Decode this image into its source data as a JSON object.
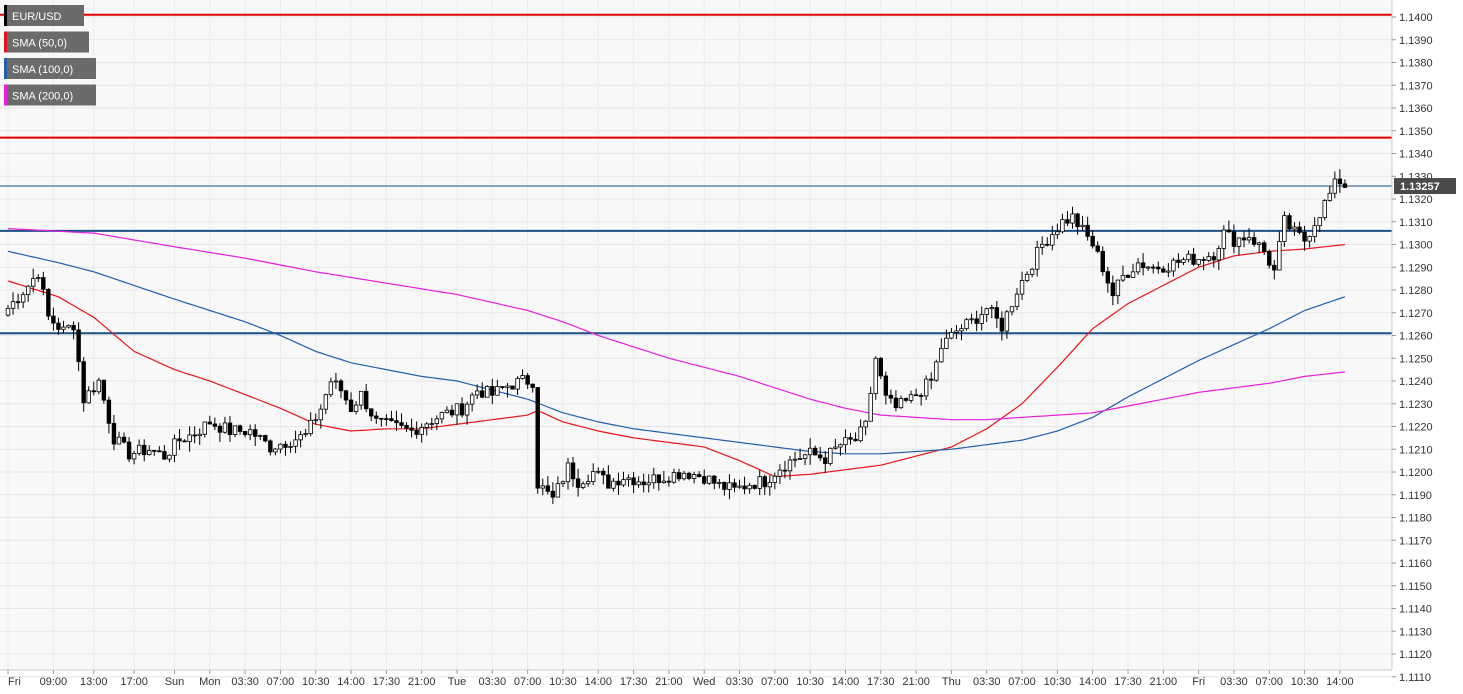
{
  "chart_data": {
    "type": "candlestick",
    "title": "",
    "xlabel": "",
    "ylabel": "",
    "ylim": [
      1.1105,
      1.1405
    ],
    "grid": true,
    "legend_placement": "top-left",
    "y_ticks": [
      "1.1110",
      "1.1120",
      "1.1130",
      "1.1140",
      "1.1150",
      "1.1160",
      "1.1170",
      "1.1180",
      "1.1190",
      "1.1200",
      "1.1210",
      "1.1220",
      "1.1230",
      "1.1240",
      "1.1250",
      "1.1260",
      "1.1270",
      "1.1280",
      "1.1290",
      "1.1300",
      "1.1310",
      "1.1320",
      "1.1330",
      "1.1340",
      "1.1350",
      "1.1360",
      "1.1370",
      "1.1380",
      "1.1390",
      "1.1400"
    ],
    "x_ticks": [
      {
        "label": "Fri",
        "index": 0
      },
      {
        "label": "09:00",
        "index": 9
      },
      {
        "label": "13:00",
        "index": 17
      },
      {
        "label": "17:00",
        "index": 25
      },
      {
        "label": "Sun",
        "index": 33
      },
      {
        "label": "Mon",
        "index": 40
      },
      {
        "label": "03:30",
        "index": 47
      },
      {
        "label": "07:00",
        "index": 54
      },
      {
        "label": "10:30",
        "index": 61
      },
      {
        "label": "14:00",
        "index": 68
      },
      {
        "label": "17:30",
        "index": 75
      },
      {
        "label": "21:00",
        "index": 82
      },
      {
        "label": "Tue",
        "index": 89
      },
      {
        "label": "03:30",
        "index": 96
      },
      {
        "label": "07:00",
        "index": 103
      },
      {
        "label": "10:30",
        "index": 110
      },
      {
        "label": "14:00",
        "index": 117
      },
      {
        "label": "17:30",
        "index": 124
      },
      {
        "label": "21:00",
        "index": 131
      },
      {
        "label": "Wed",
        "index": 138
      },
      {
        "label": "03:30",
        "index": 145
      },
      {
        "label": "07:00",
        "index": 152
      },
      {
        "label": "10:30",
        "index": 159
      },
      {
        "label": "14:00",
        "index": 166
      },
      {
        "label": "17:30",
        "index": 173
      },
      {
        "label": "21:00",
        "index": 180
      },
      {
        "label": "Thu",
        "index": 187
      },
      {
        "label": "03:30",
        "index": 194
      },
      {
        "label": "07:00",
        "index": 201
      },
      {
        "label": "10:30",
        "index": 208
      },
      {
        "label": "14:00",
        "index": 215
      },
      {
        "label": "17:30",
        "index": 222
      },
      {
        "label": "21:00",
        "index": 229
      },
      {
        "label": "Fri",
        "index": 236
      },
      {
        "label": "03:30",
        "index": 243
      },
      {
        "label": "07:00",
        "index": 250
      },
      {
        "label": "10:30",
        "index": 257
      },
      {
        "label": "14:00",
        "index": 264
      }
    ],
    "series": [
      {
        "name": "EUR/USD",
        "type": "candlestick",
        "color": "#000000"
      },
      {
        "name": "SMA (50,0)",
        "type": "line",
        "color": "#e8141b"
      },
      {
        "name": "SMA (100,0)",
        "type": "line",
        "color": "#1f5fad"
      },
      {
        "name": "SMA (200,0)",
        "type": "line",
        "color": "#e81ee0"
      }
    ],
    "price_anchors": [
      [
        0,
        1.1272
      ],
      [
        4,
        1.1282
      ],
      [
        6,
        1.1288
      ],
      [
        8,
        1.1268
      ],
      [
        11,
        1.1262
      ],
      [
        13,
        1.1265
      ],
      [
        15,
        1.1232
      ],
      [
        18,
        1.124
      ],
      [
        21,
        1.1215
      ],
      [
        24,
        1.1208
      ],
      [
        28,
        1.121
      ],
      [
        31,
        1.1207
      ],
      [
        34,
        1.1214
      ],
      [
        37,
        1.1217
      ],
      [
        40,
        1.1222
      ],
      [
        44,
        1.1218
      ],
      [
        48,
        1.1218
      ],
      [
        52,
        1.1211
      ],
      [
        56,
        1.1214
      ],
      [
        59,
        1.1216
      ],
      [
        62,
        1.1228
      ],
      [
        64,
        1.124
      ],
      [
        66,
        1.1236
      ],
      [
        68,
        1.1228
      ],
      [
        70,
        1.1234
      ],
      [
        73,
        1.1222
      ],
      [
        76,
        1.122
      ],
      [
        80,
        1.1218
      ],
      [
        83,
        1.1222
      ],
      [
        86,
        1.1225
      ],
      [
        90,
        1.1228
      ],
      [
        93,
        1.1236
      ],
      [
        96,
        1.1234
      ],
      [
        99,
        1.1238
      ],
      [
        102,
        1.124
      ],
      [
        104,
        1.124
      ],
      [
        105,
        1.1195
      ],
      [
        108,
        1.1188
      ],
      [
        111,
        1.1202
      ],
      [
        113,
        1.1196
      ],
      [
        116,
        1.12
      ],
      [
        119,
        1.1195
      ],
      [
        122,
        1.1198
      ],
      [
        126,
        1.1196
      ],
      [
        130,
        1.1198
      ],
      [
        134,
        1.12
      ],
      [
        138,
        1.1198
      ],
      [
        141,
        1.1194
      ],
      [
        144,
        1.1192
      ],
      [
        147,
        1.1195
      ],
      [
        150,
        1.1196
      ],
      [
        153,
        1.1202
      ],
      [
        156,
        1.1206
      ],
      [
        159,
        1.1208
      ],
      [
        162,
        1.1206
      ],
      [
        165,
        1.1212
      ],
      [
        168,
        1.1214
      ],
      [
        170,
        1.122
      ],
      [
        172,
        1.125
      ],
      [
        174,
        1.1232
      ],
      [
        176,
        1.1228
      ],
      [
        179,
        1.1232
      ],
      [
        181,
        1.1236
      ],
      [
        183,
        1.124
      ],
      [
        185,
        1.1255
      ],
      [
        188,
        1.1262
      ],
      [
        191,
        1.1266
      ],
      [
        194,
        1.1272
      ],
      [
        197,
        1.1264
      ],
      [
        200,
        1.128
      ],
      [
        203,
        1.1292
      ],
      [
        205,
        1.13
      ],
      [
        207,
        1.1305
      ],
      [
        209,
        1.131
      ],
      [
        211,
        1.1312
      ],
      [
        213,
        1.1306
      ],
      [
        215,
        1.13
      ],
      [
        217,
        1.129
      ],
      [
        219,
        1.1278
      ],
      [
        221,
        1.1286
      ],
      [
        224,
        1.1292
      ],
      [
        227,
        1.129
      ],
      [
        230,
        1.1291
      ],
      [
        233,
        1.1293
      ],
      [
        236,
        1.1294
      ],
      [
        239,
        1.1296
      ],
      [
        241,
        1.1305
      ],
      [
        243,
        1.1302
      ],
      [
        246,
        1.1304
      ],
      [
        249,
        1.1297
      ],
      [
        251,
        1.1288
      ],
      [
        253,
        1.131
      ],
      [
        255,
        1.1305
      ],
      [
        257,
        1.1302
      ],
      [
        259,
        1.131
      ],
      [
        261,
        1.1318
      ],
      [
        263,
        1.1326
      ],
      [
        264,
        1.1328
      ],
      [
        265,
        1.1326
      ]
    ],
    "sma50": [
      [
        0,
        1.1284
      ],
      [
        10,
        1.1277
      ],
      [
        17,
        1.1268
      ],
      [
        25,
        1.1253
      ],
      [
        33,
        1.1245
      ],
      [
        40,
        1.124
      ],
      [
        47,
        1.1234
      ],
      [
        54,
        1.1228
      ],
      [
        61,
        1.1221
      ],
      [
        68,
        1.1218
      ],
      [
        75,
        1.1219
      ],
      [
        82,
        1.1219
      ],
      [
        89,
        1.1221
      ],
      [
        96,
        1.1223
      ],
      [
        103,
        1.1225
      ],
      [
        105,
        1.1227
      ],
      [
        110,
        1.1222
      ],
      [
        117,
        1.1218
      ],
      [
        124,
        1.1215
      ],
      [
        131,
        1.1213
      ],
      [
        138,
        1.1211
      ],
      [
        145,
        1.1205
      ],
      [
        152,
        1.1198
      ],
      [
        159,
        1.1199
      ],
      [
        166,
        1.1201
      ],
      [
        173,
        1.1203
      ],
      [
        180,
        1.1207
      ],
      [
        187,
        1.1211
      ],
      [
        194,
        1.1219
      ],
      [
        201,
        1.123
      ],
      [
        208,
        1.1246
      ],
      [
        215,
        1.1263
      ],
      [
        222,
        1.1274
      ],
      [
        229,
        1.1282
      ],
      [
        236,
        1.129
      ],
      [
        243,
        1.1295
      ],
      [
        250,
        1.1297
      ],
      [
        257,
        1.1298
      ],
      [
        265,
        1.13
      ]
    ],
    "sma100": [
      [
        0,
        1.1297
      ],
      [
        10,
        1.1292
      ],
      [
        17,
        1.1288
      ],
      [
        25,
        1.1282
      ],
      [
        33,
        1.1276
      ],
      [
        40,
        1.1271
      ],
      [
        47,
        1.1266
      ],
      [
        54,
        1.126
      ],
      [
        61,
        1.1253
      ],
      [
        68,
        1.1248
      ],
      [
        75,
        1.1245
      ],
      [
        82,
        1.1242
      ],
      [
        89,
        1.124
      ],
      [
        96,
        1.1236
      ],
      [
        103,
        1.1232
      ],
      [
        110,
        1.1226
      ],
      [
        117,
        1.1222
      ],
      [
        124,
        1.1219
      ],
      [
        131,
        1.1217
      ],
      [
        138,
        1.1215
      ],
      [
        145,
        1.1213
      ],
      [
        152,
        1.1211
      ],
      [
        159,
        1.1209
      ],
      [
        166,
        1.1208
      ],
      [
        173,
        1.1208
      ],
      [
        180,
        1.1209
      ],
      [
        187,
        1.121
      ],
      [
        194,
        1.1212
      ],
      [
        201,
        1.1214
      ],
      [
        208,
        1.1218
      ],
      [
        215,
        1.1224
      ],
      [
        222,
        1.1233
      ],
      [
        229,
        1.1241
      ],
      [
        236,
        1.1249
      ],
      [
        243,
        1.1256
      ],
      [
        250,
        1.1263
      ],
      [
        257,
        1.1271
      ],
      [
        265,
        1.1277
      ]
    ],
    "sma200": [
      [
        0,
        1.1307
      ],
      [
        17,
        1.1305
      ],
      [
        33,
        1.1299
      ],
      [
        47,
        1.1294
      ],
      [
        61,
        1.1288
      ],
      [
        75,
        1.1283
      ],
      [
        89,
        1.1278
      ],
      [
        103,
        1.1271
      ],
      [
        110,
        1.1266
      ],
      [
        117,
        1.126
      ],
      [
        124,
        1.1255
      ],
      [
        131,
        1.125
      ],
      [
        138,
        1.1246
      ],
      [
        145,
        1.1242
      ],
      [
        152,
        1.1237
      ],
      [
        159,
        1.1232
      ],
      [
        166,
        1.1228
      ],
      [
        173,
        1.1225
      ],
      [
        180,
        1.1224
      ],
      [
        187,
        1.1223
      ],
      [
        194,
        1.1223
      ],
      [
        201,
        1.1224
      ],
      [
        208,
        1.1225
      ],
      [
        215,
        1.1226
      ],
      [
        222,
        1.1229
      ],
      [
        229,
        1.1232
      ],
      [
        236,
        1.1235
      ],
      [
        243,
        1.1237
      ],
      [
        250,
        1.1239
      ],
      [
        257,
        1.1242
      ],
      [
        265,
        1.1244
      ]
    ],
    "candle_count": 266,
    "horizontal_levels": [
      {
        "value": 1.1401,
        "color": "#e00000"
      },
      {
        "value": 1.1347,
        "color": "#e00000"
      },
      {
        "value": 1.1306,
        "color": "#1a4f86"
      },
      {
        "value": 1.1261,
        "color": "#1a4f86"
      }
    ],
    "current_price": {
      "value": 1.13257,
      "label": "1.13257",
      "line_color": "#1a4f86",
      "label_color": "#4a4a4a"
    }
  },
  "legend": [
    {
      "label": "EUR/USD",
      "color": "#000000"
    },
    {
      "label": "SMA (50,0)",
      "color": "#e8141b"
    },
    {
      "label": "SMA (100,0)",
      "color": "#1f5fad"
    },
    {
      "label": "SMA (200,0)",
      "color": "#e81ee0"
    }
  ]
}
